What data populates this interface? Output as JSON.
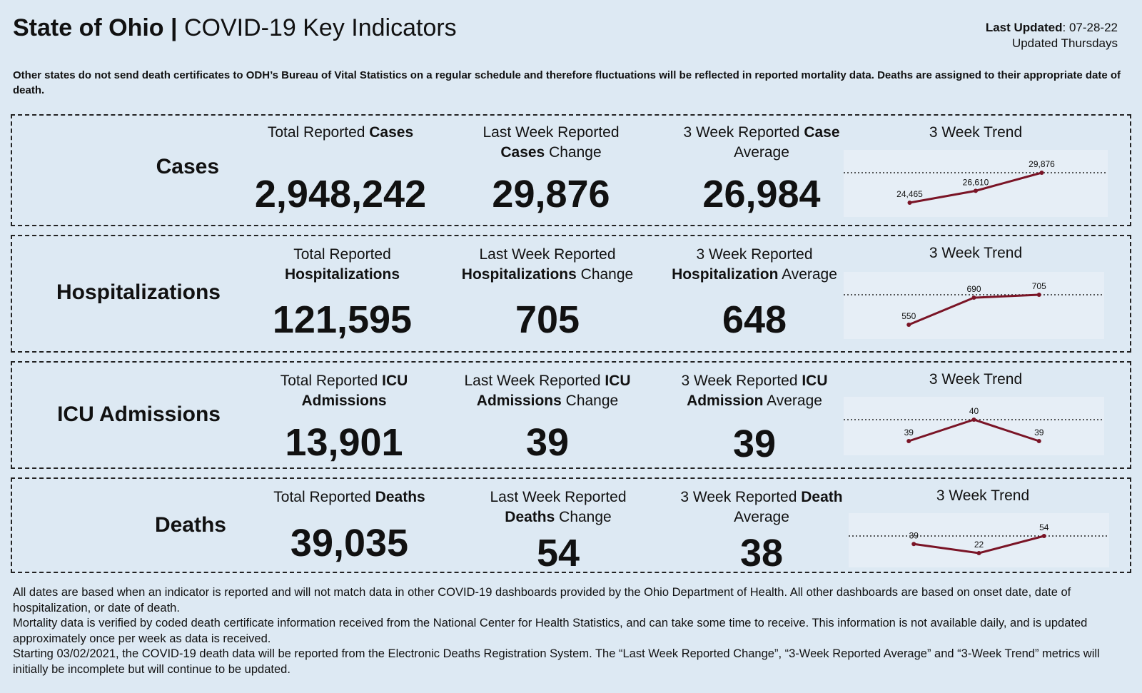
{
  "header": {
    "state": "State of Ohio",
    "separator": " | ",
    "title": "COVID-19 Key Indicators"
  },
  "updated": {
    "label": "Last Updated",
    "date": ": 07-28-22",
    "frequency": "Updated Thursdays"
  },
  "note": "Other states do not send death certificates to ODH’s Bureau of Vital Statistics on a regular schedule and therefore fluctuations will be reflected in reported mortality data. Deaths are assigned to their appropriate date of death.",
  "rows": [
    {
      "label": "Cases",
      "total": {
        "pre": "Total Reported ",
        "bold": "Cases",
        "post": "",
        "value": "2,948,242"
      },
      "change": {
        "line1": "Last Week Reported",
        "bold": "Cases",
        "post": " Change",
        "value": "29,876"
      },
      "average": {
        "pre": "3 Week Reported ",
        "bold": "Case",
        "line2": "Average",
        "value": "26,984"
      },
      "trend": {
        "title": "3 Week Trend",
        "labels": [
          "24,465",
          "26,610",
          "29,876"
        ],
        "values": [
          24465,
          26610,
          29876
        ]
      }
    },
    {
      "label": "Hospitalizations",
      "total": {
        "pre": "Total Reported",
        "bold": "Hospitalizations",
        "post": "",
        "value": "121,595"
      },
      "change": {
        "line1": "Last Week Reported",
        "bold": "Hospitalizations",
        "post": " Change",
        "value": "705"
      },
      "average": {
        "pre": "3 Week Reported",
        "bold": "Hospitalization",
        "line2": " Average",
        "value": "648"
      },
      "trend": {
        "title": "3 Week Trend",
        "labels": [
          "550",
          "690",
          "705"
        ],
        "values": [
          550,
          690,
          705
        ]
      }
    },
    {
      "label": "ICU Admissions",
      "total": {
        "pre": "Total Reported ",
        "bold": "ICU",
        "line2": "Admissions",
        "value": "13,901"
      },
      "change": {
        "line1": "Last Week Reported ",
        "line1bold": "ICU",
        "bold": "Admissions",
        "post": " Change",
        "value": "39"
      },
      "average": {
        "pre": "3 Week Reported ",
        "bold": "ICU",
        "line2bold": "Admission",
        "line2": " Average",
        "value": "39"
      },
      "trend": {
        "title": "3 Week Trend",
        "labels": [
          "39",
          "40",
          "39"
        ],
        "values": [
          39,
          40,
          39
        ]
      }
    },
    {
      "label": "Deaths",
      "total": {
        "pre": "Total Reported ",
        "bold": "Deaths",
        "post": "",
        "value": "39,035"
      },
      "change": {
        "line1": "Last Week Reported",
        "bold": "Deaths",
        "post": " Change",
        "value": "54"
      },
      "average": {
        "pre": "3 Week Reported ",
        "bold": "Death",
        "line2": "Average",
        "value": "38"
      },
      "trend": {
        "title": "3 Week Trend",
        "labels": [
          "39",
          "22",
          "54"
        ],
        "values": [
          39,
          22,
          54
        ]
      }
    }
  ],
  "footer": [
    "All dates are based when an indicator is reported and will not match data in other COVID-19 dashboards provided by the Ohio Department of Health. All other dashboards are based on onset date, date of hospitalization, or date of death.",
    "Mortality data is verified by coded death certificate information received from the National Center for Health Statistics, and can take some time to receive. This information is not available daily, and is updated approximately once per week as data is received.",
    "Starting 03/02/2021, the COVID-19 death data will be reported from the Electronic Deaths Registration System. The “Last Week Reported Change”, “3-Week Reported Average” and “3-Week Trend” metrics will initially be incomplete but will continue to be updated."
  ],
  "colors": {
    "background": "#dde9f3",
    "trend_line": "#7a1426"
  },
  "chart_data": [
    {
      "type": "line",
      "x": [
        "",
        "",
        ""
      ],
      "series": [
        {
          "values": [
            24465,
            26610,
            29876
          ]
        }
      ],
      "data_labels": [
        "24,465",
        "26,610",
        "29,876"
      ]
    },
    {
      "type": "line",
      "x": [
        "",
        "",
        ""
      ],
      "series": [
        {
          "values": [
            550,
            690,
            705
          ]
        }
      ],
      "data_labels": [
        "550",
        "690",
        "705"
      ]
    },
    {
      "type": "line",
      "x": [
        "",
        "",
        ""
      ],
      "series": [
        {
          "values": [
            39,
            40,
            39
          ]
        }
      ],
      "data_labels": [
        "39",
        "40",
        "39"
      ]
    },
    {
      "type": "line",
      "x": [
        "",
        "",
        ""
      ],
      "series": [
        {
          "values": [
            39,
            22,
            54
          ]
        }
      ],
      "data_labels": [
        "39",
        "22",
        "54"
      ]
    }
  ]
}
